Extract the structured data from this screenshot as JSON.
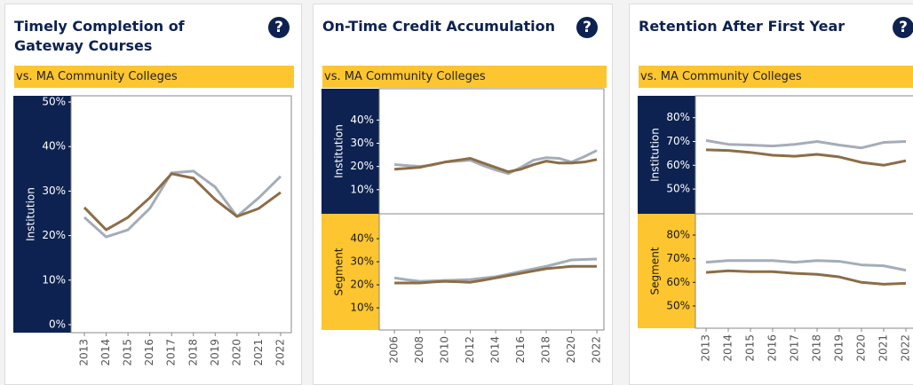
{
  "chart_data": [
    {
      "type": "line",
      "title": "Timely Completion of Gateway Courses",
      "help": "?",
      "subtitle": "vs. MA Community Colleges",
      "x": [
        2013,
        2014,
        2015,
        2016,
        2017,
        2018,
        2019,
        2020,
        2021,
        2022
      ],
      "xticks": [
        2013,
        2014,
        2015,
        2016,
        2017,
        2018,
        2019,
        2020,
        2021,
        2022
      ],
      "xlim": [
        2012.39,
        2022.49
      ],
      "panels": [
        {
          "label": "Institution",
          "ylim": [
            -1.8,
            51.4
          ],
          "yticks": [
            {
              "value": 0,
              "label": "0%"
            },
            {
              "value": 10,
              "label": "10%"
            },
            {
              "value": 20,
              "label": "20%"
            },
            {
              "value": 30,
              "label": "30%"
            },
            {
              "value": 40,
              "label": "40%"
            },
            {
              "value": 50,
              "label": "50%"
            }
          ],
          "series": [
            {
              "color": "#a4adb8",
              "values": [
                24.1,
                19.7,
                21.3,
                26.1,
                34.1,
                34.5,
                30.9,
                24.3,
                28.5,
                33.3
              ]
            },
            {
              "color": "#8c6d46",
              "values": [
                26.3,
                21.3,
                24.1,
                28.5,
                33.9,
                32.9,
                28.1,
                24.3,
                26.1,
                29.7
              ]
            }
          ]
        }
      ]
    },
    {
      "type": "line",
      "title": "On-Time Credit Accumulation",
      "help": "?",
      "subtitle": "vs. MA Community Colleges",
      "x": [
        2006,
        2007,
        2008,
        2009,
        2010,
        2011,
        2012,
        2013,
        2014,
        2015,
        2016,
        2017,
        2018,
        2019,
        2020,
        2021,
        2022
      ],
      "xticks": [
        2006,
        2008,
        2010,
        2012,
        2014,
        2016,
        2018,
        2020,
        2022
      ],
      "xlim": [
        2004.8,
        2022.56
      ],
      "panels": [
        {
          "label": "Institution",
          "ylim": [
            -0.4,
            53.5
          ],
          "yticks": [
            {
              "value": 10,
              "label": "10%"
            },
            {
              "value": 20,
              "label": "20%"
            },
            {
              "value": 30,
              "label": "30%"
            },
            {
              "value": 40,
              "label": "40%"
            }
          ],
          "series": [
            {
              "color": "#a4adb8",
              "values": [
                20.8,
                20.4,
                20,
                20.6,
                21.9,
                22.3,
                22.7,
                20.4,
                18.5,
                16.9,
                19.6,
                22.7,
                23.8,
                23.5,
                21.9,
                24.2,
                26.9
              ]
            },
            {
              "color": "#8c6d46",
              "values": [
                18.8,
                19.2,
                19.6,
                20.8,
                21.9,
                22.7,
                23.5,
                21.5,
                19.6,
                17.7,
                18.8,
                20.8,
                22.3,
                21.5,
                21.5,
                21.9,
                23
              ]
            }
          ]
        },
        {
          "label": "Segment",
          "ylim": [
            0.4,
            50.8
          ],
          "yticks": [
            {
              "value": 10,
              "label": "10%"
            },
            {
              "value": 20,
              "label": "20%"
            },
            {
              "value": 30,
              "label": "30%"
            },
            {
              "value": 40,
              "label": "40%"
            }
          ],
          "series": [
            {
              "color": "#a4adb8",
              "values": [
                23,
                22.2,
                21.5,
                21.7,
                21.9,
                22.1,
                22.3,
                22.9,
                23.5,
                24.6,
                25.8,
                26.9,
                28,
                29.4,
                30.8,
                31,
                31.2
              ]
            },
            {
              "color": "#8c6d46",
              "values": [
                20.8,
                20.8,
                20.8,
                21.2,
                21.5,
                21.3,
                21.1,
                22,
                23,
                24,
                25,
                26,
                27,
                27.5,
                28,
                28,
                28
              ]
            }
          ]
        }
      ]
    },
    {
      "type": "line",
      "title": "Retention After First Year",
      "help": "?",
      "subtitle": "vs. MA Community Colleges",
      "x": [
        2013,
        2014,
        2015,
        2016,
        2017,
        2018,
        2019,
        2020,
        2021,
        2022
      ],
      "xticks": [
        2013,
        2014,
        2015,
        2016,
        2017,
        2018,
        2019,
        2020,
        2021,
        2022
      ],
      "xlim": [
        2012.52,
        2022.8
      ],
      "panels": [
        {
          "label": "Institution",
          "ylim": [
            39.6,
            89.2
          ],
          "yticks": [
            {
              "value": 50,
              "label": "50%"
            },
            {
              "value": 60,
              "label": "60%"
            },
            {
              "value": 70,
              "label": "70%"
            },
            {
              "value": 80,
              "label": "80%"
            }
          ],
          "series": [
            {
              "color": "#a4adb8",
              "values": [
                70.4,
                68.8,
                68.5,
                68.1,
                68.8,
                70,
                68.5,
                67.3,
                69.6,
                70
              ]
            },
            {
              "color": "#8c6d46",
              "values": [
                66.5,
                66.2,
                65.4,
                64.2,
                63.8,
                64.6,
                63.5,
                61.2,
                60,
                61.9
              ]
            }
          ]
        },
        {
          "label": "Segment",
          "ylim": [
            40.6,
            89
          ],
          "yticks": [
            {
              "value": 50,
              "label": "50%"
            },
            {
              "value": 60,
              "label": "60%"
            },
            {
              "value": 70,
              "label": "70%"
            },
            {
              "value": 80,
              "label": "80%"
            }
          ],
          "series": [
            {
              "color": "#a4adb8",
              "values": [
                68.5,
                69.2,
                69.2,
                69.2,
                68.5,
                69.2,
                68.9,
                67.4,
                67,
                65.1
              ]
            },
            {
              "color": "#8c6d46",
              "values": [
                64.2,
                64.9,
                64.5,
                64.5,
                63.8,
                63.4,
                62.3,
                60,
                59.2,
                59.6
              ]
            }
          ]
        }
      ]
    }
  ]
}
